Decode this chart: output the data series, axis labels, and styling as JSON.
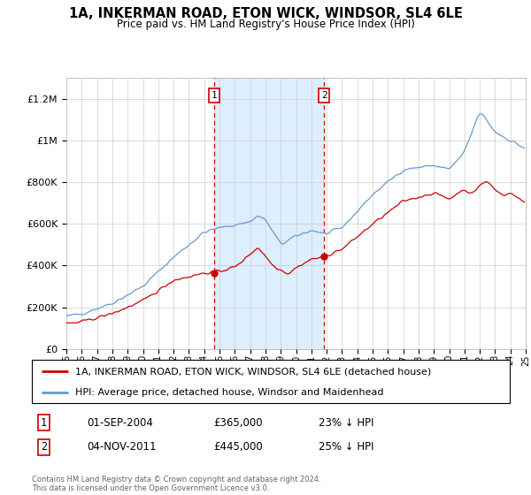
{
  "title": "1A, INKERMAN ROAD, ETON WICK, WINDSOR, SL4 6LE",
  "subtitle": "Price paid vs. HM Land Registry's House Price Index (HPI)",
  "legend_line1": "1A, INKERMAN ROAD, ETON WICK, WINDSOR, SL4 6LE (detached house)",
  "legend_line2": "HPI: Average price, detached house, Windsor and Maidenhead",
  "footer": "Contains HM Land Registry data © Crown copyright and database right 2024.\nThis data is licensed under the Open Government Licence v3.0.",
  "sale1_label": "1",
  "sale1_date": "01-SEP-2004",
  "sale1_price": "£365,000",
  "sale1_hpi": "23% ↓ HPI",
  "sale2_label": "2",
  "sale2_date": "04-NOV-2011",
  "sale2_price": "£445,000",
  "sale2_hpi": "25% ↓ HPI",
  "red_color": "#cc0000",
  "blue_color": "#6699cc",
  "shaded_color": "#ddeeff",
  "marker1_x": 2004.67,
  "marker2_x": 2011.84,
  "marker1_y": 365000,
  "marker2_y": 445000,
  "ylim": [
    0,
    1300000
  ],
  "xlim": [
    1995.0,
    2025.0
  ]
}
